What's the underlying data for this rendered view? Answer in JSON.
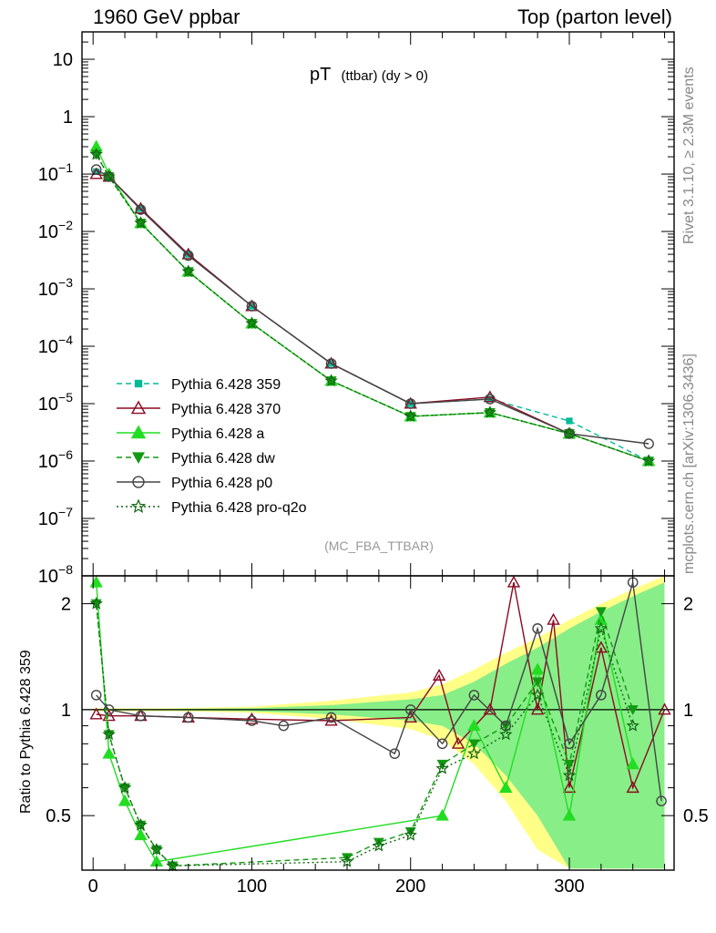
{
  "header": {
    "left": "1960 GeV ppbar",
    "right": "Top (parton level)"
  },
  "side_text": {
    "rivet": "Rivet 3.1.10, ≥ 2.3M events",
    "mcplots": "mcplots.cern.ch [arXiv:1306.3436]"
  },
  "colors": {
    "359": "#00bb99",
    "370": "#8b0a22",
    "a": "#22dd22",
    "dw": "#129a12",
    "p0": "#444444",
    "pro-q2o": "#116611",
    "band_yellow": "#ffff88",
    "band_green": "#88ee88"
  },
  "chart_data": [
    {
      "type": "line",
      "title_main": "pT",
      "title_sub": "(ttbar) (dy > 0)",
      "watermark": "(MC_FBA_TTBAR)",
      "yscale": "log",
      "ylim": [
        1e-08,
        30
      ],
      "xlim": [
        -7,
        366
      ],
      "yticks": [
        {
          "v": 10,
          "label": "10"
        },
        {
          "v": 1,
          "label": "1"
        },
        {
          "v": 0.1,
          "base": "10",
          "exp": "−1"
        },
        {
          "v": 0.01,
          "base": "10",
          "exp": "−2"
        },
        {
          "v": 0.001,
          "base": "10",
          "exp": "−3"
        },
        {
          "v": 0.0001,
          "base": "10",
          "exp": "−4"
        },
        {
          "v": 1e-05,
          "base": "10",
          "exp": "−5"
        },
        {
          "v": 1e-06,
          "base": "10",
          "exp": "−6"
        },
        {
          "v": 1e-07,
          "base": "10",
          "exp": "−7"
        },
        {
          "v": 1e-08,
          "base": "10",
          "exp": "−8"
        }
      ],
      "legend": [
        {
          "label": "Pythia 6.428 359",
          "key": "359"
        },
        {
          "label": "Pythia 6.428 370",
          "key": "370"
        },
        {
          "label": "Pythia 6.428 a",
          "key": "a"
        },
        {
          "label": "Pythia 6.428 dw",
          "key": "dw"
        },
        {
          "label": "Pythia 6.428 p0",
          "key": "p0"
        },
        {
          "label": "Pythia 6.428 pro-q2o",
          "key": "pro-q2o"
        }
      ],
      "series": [
        {
          "name": "Pythia 6.428 359",
          "key": "359",
          "x": [
            2,
            10,
            30,
            60,
            100,
            150,
            200,
            250,
            300,
            350
          ],
          "y": [
            0.11,
            0.09,
            0.025,
            0.004,
            0.0005,
            5e-05,
            1e-05,
            1.2e-05,
            5e-06,
            1e-06
          ]
        },
        {
          "name": "Pythia 6.428 370",
          "key": "370",
          "x": [
            2,
            10,
            30,
            60,
            100,
            150,
            200,
            250,
            300,
            350
          ],
          "y": [
            0.1,
            0.09,
            0.025,
            0.004,
            0.0005,
            5e-05,
            1e-05,
            1.3e-05,
            3e-06,
            1e-06
          ]
        },
        {
          "name": "Pythia 6.428 a",
          "key": "a",
          "x": [
            2,
            10,
            30,
            60,
            100,
            150,
            200,
            250,
            300,
            350
          ],
          "y": [
            0.3,
            0.1,
            0.014,
            0.002,
            0.00025,
            2.5e-05,
            6e-06,
            7e-06,
            3e-06,
            1e-06
          ]
        },
        {
          "name": "Pythia 6.428 dw",
          "key": "dw",
          "x": [
            2,
            10,
            30,
            60,
            100,
            150,
            200,
            250,
            300,
            350
          ],
          "y": [
            0.22,
            0.09,
            0.014,
            0.002,
            0.00025,
            2.5e-05,
            6e-06,
            7e-06,
            3e-06,
            1e-06
          ]
        },
        {
          "name": "Pythia 6.428 p0",
          "key": "p0",
          "x": [
            2,
            10,
            30,
            60,
            100,
            150,
            200,
            250,
            300,
            350
          ],
          "y": [
            0.12,
            0.09,
            0.024,
            0.0038,
            0.0005,
            5e-05,
            1e-05,
            1.2e-05,
            3e-06,
            2e-06
          ]
        },
        {
          "name": "Pythia 6.428 pro-q2o",
          "key": "pro-q2o",
          "x": [
            2,
            10,
            30,
            60,
            100,
            150,
            200,
            250,
            300,
            350
          ],
          "y": [
            0.22,
            0.09,
            0.014,
            0.002,
            0.00025,
            2.5e-05,
            6e-06,
            7e-06,
            3e-06,
            1e-06
          ]
        }
      ]
    },
    {
      "type": "line",
      "ylabel": "Ratio to Pythia 6.428 359",
      "yscale": "log",
      "ylim": [
        0.35,
        2.4
      ],
      "xlim": [
        -7,
        366
      ],
      "yticks": [
        {
          "v": 0.5,
          "label": "0.5"
        },
        {
          "v": 1,
          "label": "1"
        },
        {
          "v": 2,
          "label": "2"
        }
      ],
      "xticks": [
        {
          "v": 0,
          "label": "0"
        },
        {
          "v": 100,
          "label": "100"
        },
        {
          "v": 200,
          "label": "200"
        },
        {
          "v": 300,
          "label": "300"
        }
      ],
      "band": {
        "x": [
          0,
          50,
          100,
          150,
          200,
          220,
          240,
          260,
          280,
          300,
          320,
          340,
          360
        ],
        "yellow_half": [
          0.01,
          0.01,
          0.02,
          0.06,
          0.12,
          0.18,
          0.3,
          0.45,
          0.6,
          0.8,
          1.0,
          1.2,
          1.4
        ],
        "green_half": [
          0.005,
          0.005,
          0.01,
          0.03,
          0.07,
          0.1,
          0.2,
          0.35,
          0.5,
          0.7,
          0.9,
          1.1,
          1.3
        ]
      },
      "series": [
        {
          "name": "Pythia 6.428 370",
          "key": "370",
          "x": [
            2,
            10,
            30,
            60,
            100,
            150,
            200,
            218,
            230,
            250,
            265,
            280,
            290,
            300,
            320,
            340,
            360
          ],
          "y": [
            0.97,
            0.96,
            0.96,
            0.95,
            0.94,
            0.93,
            0.95,
            1.25,
            0.8,
            1.0,
            2.3,
            1.0,
            1.8,
            0.6,
            1.5,
            0.6,
            1.0
          ]
        },
        {
          "name": "Pythia 6.428 a",
          "key": "a",
          "x": [
            2,
            10,
            20,
            30,
            40,
            220,
            240,
            260,
            280,
            300,
            320,
            340
          ],
          "y": [
            2.3,
            0.75,
            0.55,
            0.44,
            0.37,
            0.5,
            0.9,
            0.6,
            1.3,
            0.5,
            1.8,
            0.7
          ]
        },
        {
          "name": "Pythia 6.428 dw",
          "key": "dw",
          "x": [
            2,
            10,
            20,
            30,
            40,
            50,
            160,
            180,
            200,
            220,
            240,
            260,
            280,
            300,
            320,
            340
          ],
          "y": [
            2.0,
            0.85,
            0.6,
            0.47,
            0.4,
            0.36,
            0.38,
            0.42,
            0.45,
            0.7,
            0.8,
            0.9,
            1.2,
            0.7,
            1.9,
            1.0
          ]
        },
        {
          "name": "Pythia 6.428 p0",
          "key": "p0",
          "x": [
            2,
            10,
            30,
            60,
            100,
            120,
            150,
            190,
            200,
            220,
            240,
            260,
            280,
            300,
            320,
            340,
            358
          ],
          "y": [
            1.1,
            1.0,
            0.96,
            0.95,
            0.93,
            0.9,
            0.95,
            0.75,
            1.0,
            0.8,
            1.1,
            0.9,
            1.7,
            0.8,
            1.1,
            2.3,
            0.55
          ]
        },
        {
          "name": "Pythia 6.428 pro-q2o",
          "key": "pro-q2o",
          "x": [
            2,
            10,
            20,
            30,
            40,
            50,
            160,
            180,
            200,
            220,
            240,
            260,
            280,
            300,
            320,
            340
          ],
          "y": [
            2.0,
            0.85,
            0.6,
            0.47,
            0.4,
            0.36,
            0.37,
            0.41,
            0.44,
            0.68,
            0.75,
            0.85,
            1.1,
            0.65,
            1.7,
            0.9
          ]
        }
      ]
    }
  ]
}
